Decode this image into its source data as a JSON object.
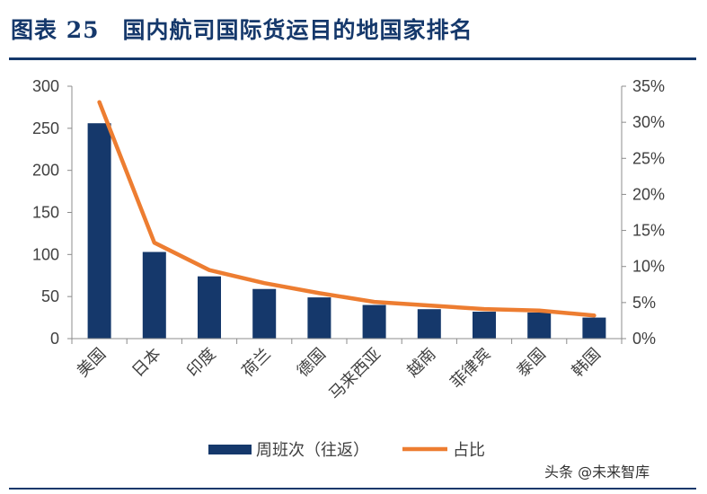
{
  "header": {
    "title": "图表 25　国内航司国际货运目的地国家排名"
  },
  "watermark": "头条 @未来智库",
  "chart_data": {
    "type": "bar",
    "title": "",
    "categories": [
      "美国",
      "日本",
      "印度",
      "荷兰",
      "德国",
      "马来西亚",
      "越南",
      "菲律宾",
      "泰国",
      "韩国"
    ],
    "series": [
      {
        "name": "周班次（往返）",
        "type": "bar",
        "axis": "left",
        "values": [
          256,
          103,
          74,
          59,
          49,
          40,
          35,
          32,
          31,
          25
        ],
        "color": "#15386b"
      },
      {
        "name": "占比",
        "type": "line",
        "axis": "right",
        "values": [
          32.8,
          13.3,
          9.5,
          7.7,
          6.3,
          5.1,
          4.6,
          4.1,
          3.9,
          3.2
        ],
        "color": "#ed7d31"
      }
    ],
    "y_left": {
      "min": 0,
      "max": 300,
      "ticks": [
        0,
        50,
        100,
        150,
        200,
        250,
        300
      ]
    },
    "y_right": {
      "min": 0,
      "max": 35,
      "ticks": [
        "0%",
        "5%",
        "10%",
        "15%",
        "20%",
        "25%",
        "30%",
        "35%"
      ]
    },
    "legend": "bottom-center",
    "grid": false
  }
}
